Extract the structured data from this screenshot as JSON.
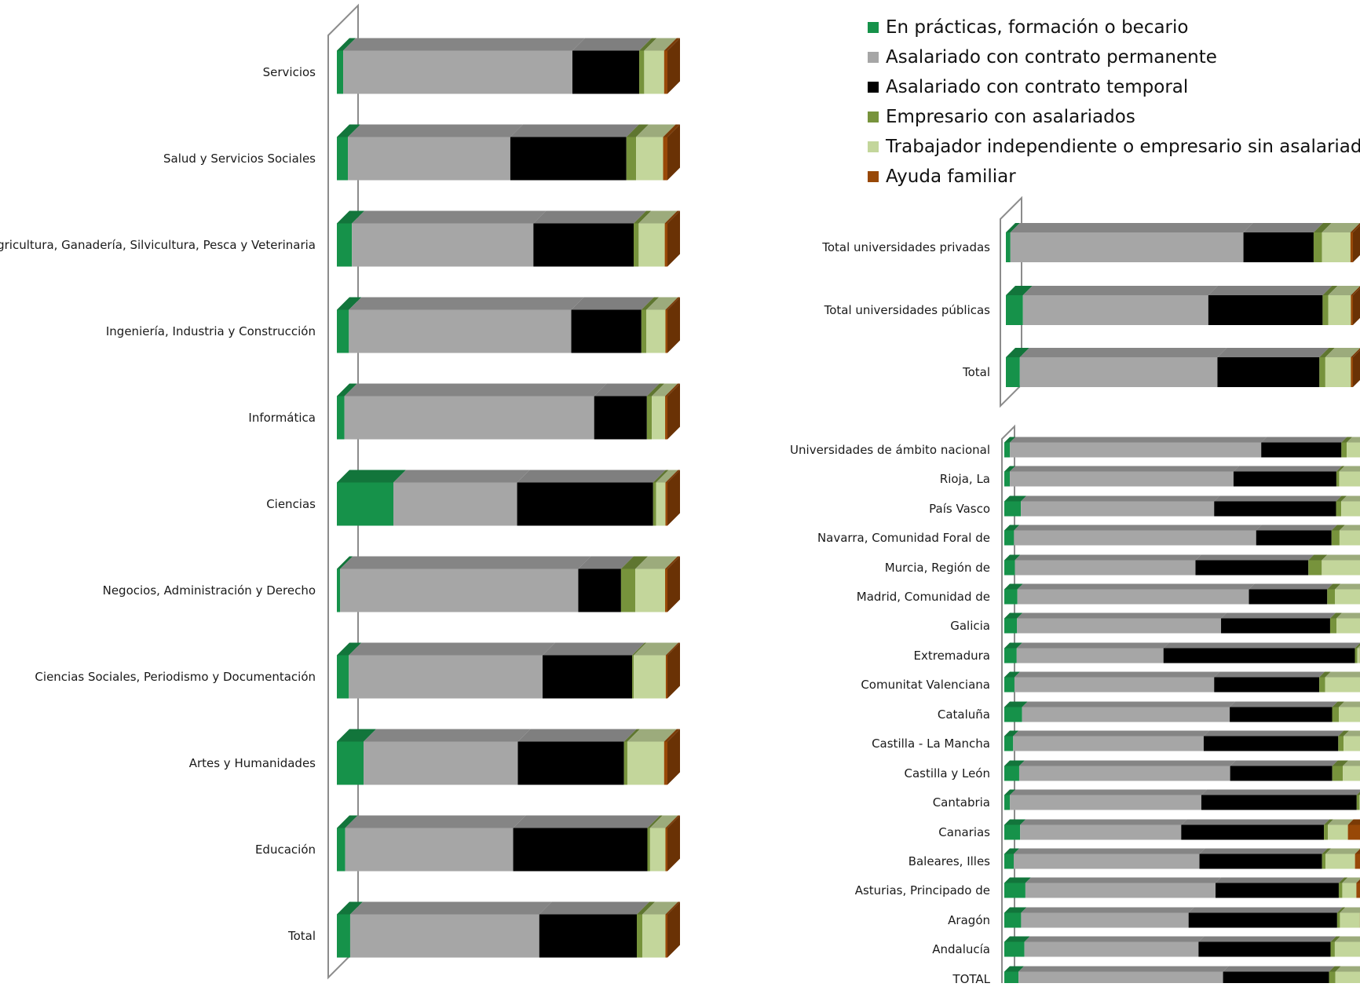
{
  "legend": [
    {
      "label": "En prácticas, formación o becario",
      "color": "#16924a"
    },
    {
      "label": "Asalariado con contrato permanente",
      "color": "#a6a6a6"
    },
    {
      "label": "Asalariado con contrato temporal",
      "color": "#000000"
    },
    {
      "label": "Empresario con asalariados",
      "color": "#77933c"
    },
    {
      "label": "Trabajador independiente o empresario sin asalariados",
      "color": "#c3d69b"
    },
    {
      "label": "Ayuda familiar",
      "color": "#984807"
    }
  ],
  "chart_data": [
    {
      "type": "bar",
      "orientation": "horizontal",
      "stacked": "percent",
      "categories": [
        "Servicios",
        "Salud y Servicios Sociales",
        "Agricultura, Ganadería, Silvicultura, Pesca y Veterinaria",
        "Ingeniería, Industria y Construcción",
        "Informática",
        "Ciencias",
        "Negocios, Administración y Derecho",
        "Ciencias Sociales, Periodismo y Documentación",
        "Artes y Humanidades",
        "Educación",
        "Total"
      ],
      "series": [
        {
          "name": "En prácticas, formación o becario",
          "values": [
            1.9,
            3.3,
            4.5,
            3.6,
            2.3,
            17.0,
            1.0,
            3.6,
            8.0,
            2.5,
            4.0
          ]
        },
        {
          "name": "Asalariado con contrato permanente",
          "values": [
            69.0,
            48.7,
            54.3,
            66.6,
            75.3,
            37.2,
            71.3,
            58.2,
            46.2,
            50.3,
            56.8
          ]
        },
        {
          "name": "Asalariado con contrato temporal",
          "values": [
            20.1,
            34.8,
            30.0,
            21.0,
            15.9,
            40.9,
            12.8,
            26.9,
            31.8,
            40.2,
            29.3
          ]
        },
        {
          "name": "Empresario con asalariados",
          "values": [
            1.5,
            2.9,
            1.5,
            1.5,
            1.5,
            0.9,
            4.3,
            0.5,
            1.0,
            0.8,
            1.7
          ]
        },
        {
          "name": "Trabajador independiente o empresario sin asalariados",
          "values": [
            6.0,
            8.1,
            7.8,
            5.7,
            4.0,
            2.8,
            8.9,
            9.6,
            11.0,
            4.6,
            6.9
          ]
        },
        {
          "name": "Ayuda familiar",
          "values": [
            1.0,
            1.3,
            0.8,
            0.6,
            0.7,
            0.6,
            0.7,
            0.5,
            1.0,
            0.6,
            0.6
          ]
        }
      ]
    },
    {
      "type": "bar",
      "orientation": "horizontal",
      "stacked": "percent",
      "categories": [
        "Total universidades privadas",
        "Total universidades públicas",
        "Total"
      ],
      "series": [
        {
          "name": "En prácticas, formación o becario",
          "values": [
            1.3,
            4.9,
            4.0
          ]
        },
        {
          "name": "Asalariado con contrato permanente",
          "values": [
            66.4,
            53.2,
            56.6
          ]
        },
        {
          "name": "Asalariado con contrato temporal",
          "values": [
            20.0,
            32.8,
            29.2
          ]
        },
        {
          "name": "Empresario con asalariados",
          "values": [
            2.4,
            1.6,
            1.7
          ]
        },
        {
          "name": "Trabajador independiente o empresario sin asalariados",
          "values": [
            8.1,
            6.5,
            7.3
          ]
        },
        {
          "name": "Ayuda familiar",
          "values": [
            0.7,
            0.6,
            0.6
          ]
        }
      ]
    },
    {
      "type": "bar",
      "orientation": "horizontal",
      "stacked": "percent",
      "categories": [
        "Universidades de ámbito nacional",
        "Rioja, La",
        "País Vasco",
        "Navarra, Comunidad Foral de",
        "Murcia, Región de",
        "Madrid, Comunidad de",
        "Galicia",
        "Extremadura",
        "Comunitat Valenciana",
        "Cataluña",
        "Castilla - La Mancha",
        "Castilla y León",
        "Cantabria",
        "Canarias",
        "Baleares, Illes",
        "Asturias, Principado de",
        "Aragón",
        "Andalucía",
        "TOTAL"
      ],
      "series": [
        {
          "name": "En prácticas, formación o becario",
          "values": [
            1.6,
            1.6,
            4.8,
            2.8,
            3.0,
            3.7,
            3.6,
            3.5,
            2.9,
            5.0,
            2.5,
            4.2,
            1.6,
            4.5,
            2.7,
            6.0,
            4.8,
            5.7,
            4.0
          ]
        },
        {
          "name": "Asalariado con contrato permanente",
          "values": [
            70.8,
            64.6,
            55.8,
            70.0,
            51.2,
            65.3,
            57.6,
            41.4,
            57.0,
            58.4,
            53.8,
            59.5,
            54.2,
            45.7,
            53.0,
            54.0,
            47.8,
            49.3,
            57.7
          ]
        },
        {
          "name": "Asalariado con contrato temporal",
          "values": [
            22.6,
            29.7,
            35.2,
            21.8,
            32.0,
            22.1,
            30.8,
            54.0,
            30.0,
            28.8,
            38.0,
            28.8,
            44.0,
            40.5,
            35.0,
            35.0,
            42.4,
            37.4,
            29.9
          ]
        },
        {
          "name": "Empresario con asalariados",
          "values": [
            1.5,
            0.8,
            1.5,
            2.3,
            3.8,
            2.2,
            1.8,
            0.7,
            1.7,
            1.9,
            1.5,
            3.0,
            0.8,
            1.1,
            1.0,
            1.0,
            0.8,
            1.2,
            1.8
          ]
        },
        {
          "name": "Trabajador independiente o empresario sin asalariados",
          "values": [
            4.0,
            6.2,
            5.5,
            6.0,
            11.0,
            7.1,
            6.8,
            0.7,
            10.0,
            6.2,
            4.7,
            5.0,
            0.2,
            5.7,
            8.4,
            4.0,
            5.7,
            7.2,
            7.0
          ]
        },
        {
          "name": "Ayuda familiar",
          "values": [
            0.4,
            0.5,
            0.6,
            0.6,
            0.5,
            0.6,
            0.5,
            0.7,
            0.6,
            0.4,
            0.6,
            0.5,
            0.6,
            4.1,
            2.1,
            1.7,
            0.7,
            0.6,
            0.6
          ]
        }
      ]
    }
  ]
}
